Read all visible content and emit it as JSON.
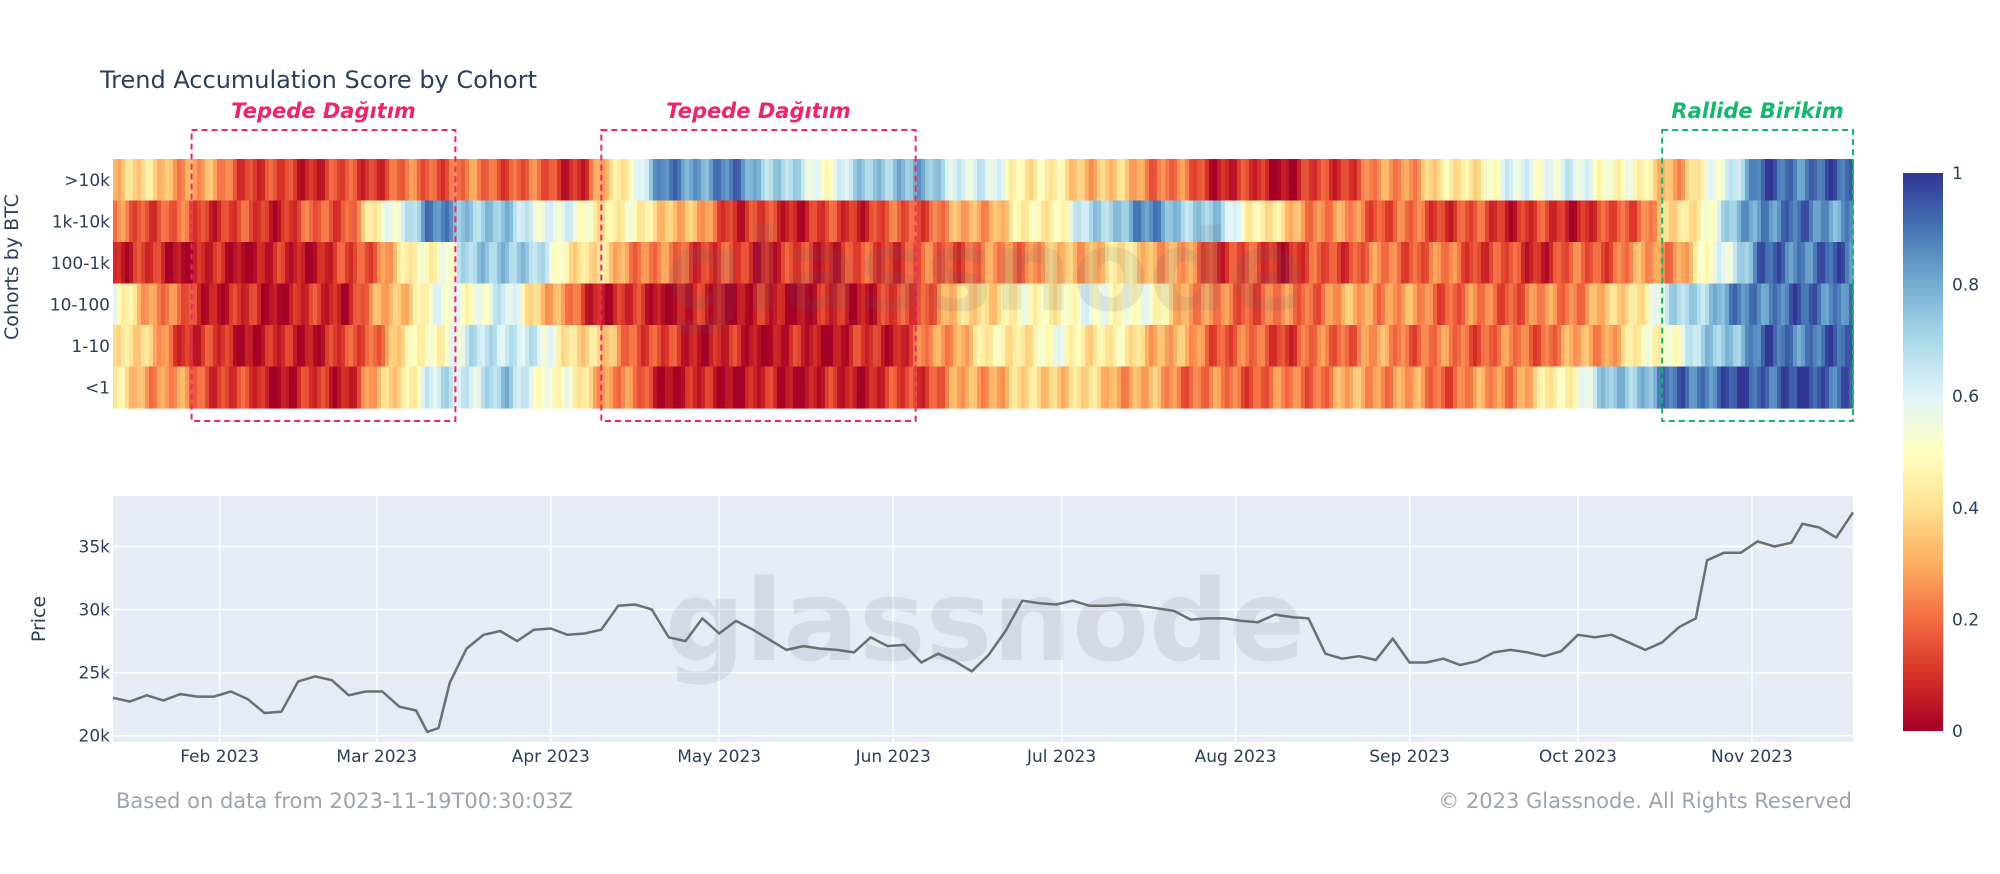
{
  "title": "Trend Accumulation Score by Cohort",
  "footer": {
    "left": "Based on data from 2023-11-19T00:30:03Z",
    "right": "© 2023 Glassnode. All Rights Reserved"
  },
  "watermark": "glassnode",
  "annotations": [
    {
      "label": "Tepede Dağıtım",
      "start": "2023-01-27",
      "end": "2023-03-15",
      "color": "#f0246b"
    },
    {
      "label": "Tepede Dağıtım",
      "start": "2023-04-10",
      "end": "2023-06-05",
      "color": "#f0246b"
    },
    {
      "label": "Rallide Birikim",
      "start": "2023-10-16",
      "end": "2023-11-19",
      "color": "#14b86a"
    }
  ],
  "chart_data": [
    {
      "type": "heatmap",
      "ylabel": "Cohorts by BTC",
      "y_categories": [
        ">10k",
        "1k-10k",
        "100-1k",
        "10-100",
        "1-10",
        "<1"
      ],
      "x_range": [
        "2023-01-13",
        "2023-11-19"
      ],
      "colorbar": {
        "min": 0,
        "max": 1,
        "ticks": [
          0,
          0.2,
          0.4,
          0.6,
          0.8,
          1
        ]
      },
      "series": [
        {
          "name": ">10k",
          "x": [
            "2023-01-13",
            "2023-01-27",
            "2023-02-10",
            "2023-02-24",
            "2023-03-10",
            "2023-03-24",
            "2023-04-07",
            "2023-04-21",
            "2023-05-05",
            "2023-05-19",
            "2023-06-02",
            "2023-06-16",
            "2023-06-30",
            "2023-07-14",
            "2023-07-28",
            "2023-08-11",
            "2023-08-25",
            "2023-09-08",
            "2023-09-22",
            "2023-10-06",
            "2023-10-20",
            "2023-11-03",
            "2023-11-17"
          ],
          "values": [
            0.4,
            0.3,
            0.1,
            0.12,
            0.2,
            0.2,
            0.1,
            0.85,
            0.85,
            0.55,
            0.8,
            0.6,
            0.4,
            0.3,
            0.1,
            0.05,
            0.2,
            0.4,
            0.6,
            0.55,
            0.3,
            0.92,
            0.9
          ]
        },
        {
          "name": "1k-10k",
          "x": [
            "2023-01-13",
            "2023-01-27",
            "2023-02-10",
            "2023-02-24",
            "2023-03-10",
            "2023-03-24",
            "2023-04-07",
            "2023-04-21",
            "2023-05-05",
            "2023-05-19",
            "2023-06-02",
            "2023-06-16",
            "2023-06-30",
            "2023-07-14",
            "2023-07-28",
            "2023-08-11",
            "2023-08-25",
            "2023-09-08",
            "2023-09-22",
            "2023-10-06",
            "2023-10-20",
            "2023-11-03",
            "2023-11-17"
          ],
          "values": [
            0.2,
            0.15,
            0.1,
            0.2,
            0.85,
            0.7,
            0.5,
            0.4,
            0.1,
            0.1,
            0.15,
            0.3,
            0.5,
            0.85,
            0.7,
            0.3,
            0.2,
            0.15,
            0.1,
            0.1,
            0.4,
            0.9,
            0.85
          ]
        },
        {
          "name": "100-1k",
          "x": [
            "2023-01-13",
            "2023-01-27",
            "2023-02-10",
            "2023-02-24",
            "2023-03-10",
            "2023-03-24",
            "2023-04-07",
            "2023-04-21",
            "2023-05-05",
            "2023-05-19",
            "2023-06-02",
            "2023-06-16",
            "2023-06-30",
            "2023-07-14",
            "2023-07-28",
            "2023-08-11",
            "2023-08-25",
            "2023-09-08",
            "2023-09-22",
            "2023-10-06",
            "2023-10-20",
            "2023-11-03",
            "2023-11-17"
          ],
          "values": [
            0.1,
            0.05,
            0.05,
            0.1,
            0.5,
            0.8,
            0.4,
            0.2,
            0.1,
            0.1,
            0.15,
            0.2,
            0.3,
            0.4,
            0.15,
            0.1,
            0.2,
            0.2,
            0.1,
            0.2,
            0.3,
            0.9,
            0.9
          ]
        },
        {
          "name": "10-100",
          "x": [
            "2023-01-13",
            "2023-01-27",
            "2023-02-10",
            "2023-02-24",
            "2023-03-10",
            "2023-03-24",
            "2023-04-07",
            "2023-04-21",
            "2023-05-05",
            "2023-05-19",
            "2023-06-02",
            "2023-06-16",
            "2023-06-30",
            "2023-07-14",
            "2023-07-28",
            "2023-08-11",
            "2023-08-25",
            "2023-09-08",
            "2023-09-22",
            "2023-10-06",
            "2023-10-20",
            "2023-11-03",
            "2023-11-17"
          ],
          "values": [
            0.5,
            0.1,
            0.05,
            0.1,
            0.5,
            0.6,
            0.1,
            0.05,
            0.05,
            0.05,
            0.1,
            0.4,
            0.5,
            0.55,
            0.2,
            0.2,
            0.3,
            0.2,
            0.2,
            0.3,
            0.7,
            0.9,
            0.9
          ]
        },
        {
          "name": "1-10",
          "x": [
            "2023-01-13",
            "2023-01-27",
            "2023-02-10",
            "2023-02-24",
            "2023-03-10",
            "2023-03-24",
            "2023-04-07",
            "2023-04-21",
            "2023-05-05",
            "2023-05-19",
            "2023-06-02",
            "2023-06-16",
            "2023-06-30",
            "2023-07-14",
            "2023-07-28",
            "2023-08-11",
            "2023-08-25",
            "2023-09-08",
            "2023-09-22",
            "2023-10-06",
            "2023-10-20",
            "2023-11-03",
            "2023-11-17"
          ],
          "values": [
            0.5,
            0.1,
            0.05,
            0.1,
            0.5,
            0.7,
            0.4,
            0.1,
            0.05,
            0.05,
            0.1,
            0.4,
            0.5,
            0.4,
            0.2,
            0.15,
            0.25,
            0.2,
            0.2,
            0.3,
            0.6,
            0.9,
            0.9
          ]
        },
        {
          "name": "<1",
          "x": [
            "2023-01-13",
            "2023-01-27",
            "2023-02-10",
            "2023-02-24",
            "2023-03-10",
            "2023-03-24",
            "2023-04-07",
            "2023-04-21",
            "2023-05-05",
            "2023-05-19",
            "2023-06-02",
            "2023-06-16",
            "2023-06-30",
            "2023-07-14",
            "2023-07-28",
            "2023-08-11",
            "2023-08-25",
            "2023-09-08",
            "2023-09-22",
            "2023-10-06",
            "2023-10-20",
            "2023-11-03",
            "2023-11-17"
          ],
          "values": [
            0.4,
            0.2,
            0.05,
            0.1,
            0.6,
            0.7,
            0.4,
            0.05,
            0.05,
            0.05,
            0.1,
            0.3,
            0.4,
            0.3,
            0.2,
            0.2,
            0.3,
            0.2,
            0.3,
            0.7,
            0.9,
            0.95,
            0.95
          ]
        }
      ]
    },
    {
      "type": "line",
      "ylabel": "Price",
      "x_range": [
        "2023-01-13",
        "2023-11-19"
      ],
      "ylim": [
        19500,
        39000
      ],
      "y_ticks": [
        20000,
        25000,
        30000,
        35000
      ],
      "y_tick_labels": [
        "20k",
        "25k",
        "30k",
        "35k"
      ],
      "x_ticks": [
        "2023-02-01",
        "2023-03-01",
        "2023-04-01",
        "2023-05-01",
        "2023-06-01",
        "2023-07-01",
        "2023-08-01",
        "2023-09-01",
        "2023-10-01",
        "2023-11-01"
      ],
      "x_tick_labels": [
        "Feb 2023",
        "Mar 2023",
        "Apr 2023",
        "May 2023",
        "Jun 2023",
        "Jul 2023",
        "Aug 2023",
        "Sep 2023",
        "Oct 2023",
        "Nov 2023"
      ],
      "grid": true,
      "series": [
        {
          "color": "#6e6e6e",
          "x": [
            "2023-01-13",
            "2023-01-16",
            "2023-01-19",
            "2023-01-22",
            "2023-01-25",
            "2023-01-28",
            "2023-01-31",
            "2023-02-03",
            "2023-02-06",
            "2023-02-09",
            "2023-02-12",
            "2023-02-15",
            "2023-02-18",
            "2023-02-21",
            "2023-02-24",
            "2023-02-27",
            "2023-03-02",
            "2023-03-05",
            "2023-03-08",
            "2023-03-10",
            "2023-03-12",
            "2023-03-14",
            "2023-03-17",
            "2023-03-20",
            "2023-03-23",
            "2023-03-26",
            "2023-03-29",
            "2023-04-01",
            "2023-04-04",
            "2023-04-07",
            "2023-04-10",
            "2023-04-13",
            "2023-04-16",
            "2023-04-19",
            "2023-04-22",
            "2023-04-25",
            "2023-04-28",
            "2023-05-01",
            "2023-05-04",
            "2023-05-07",
            "2023-05-10",
            "2023-05-13",
            "2023-05-16",
            "2023-05-19",
            "2023-05-22",
            "2023-05-25",
            "2023-05-28",
            "2023-05-31",
            "2023-06-03",
            "2023-06-06",
            "2023-06-09",
            "2023-06-12",
            "2023-06-15",
            "2023-06-18",
            "2023-06-21",
            "2023-06-24",
            "2023-06-27",
            "2023-06-30",
            "2023-07-03",
            "2023-07-06",
            "2023-07-09",
            "2023-07-12",
            "2023-07-15",
            "2023-07-18",
            "2023-07-21",
            "2023-07-24",
            "2023-07-27",
            "2023-07-30",
            "2023-08-02",
            "2023-08-05",
            "2023-08-08",
            "2023-08-11",
            "2023-08-14",
            "2023-08-17",
            "2023-08-20",
            "2023-08-23",
            "2023-08-26",
            "2023-08-29",
            "2023-09-01",
            "2023-09-04",
            "2023-09-07",
            "2023-09-10",
            "2023-09-13",
            "2023-09-16",
            "2023-09-19",
            "2023-09-22",
            "2023-09-25",
            "2023-09-28",
            "2023-10-01",
            "2023-10-04",
            "2023-10-07",
            "2023-10-10",
            "2023-10-13",
            "2023-10-16",
            "2023-10-19",
            "2023-10-22",
            "2023-10-24",
            "2023-10-27",
            "2023-10-30",
            "2023-11-02",
            "2023-11-05",
            "2023-11-08",
            "2023-11-10",
            "2023-11-13",
            "2023-11-16",
            "2023-11-19"
          ],
          "values": [
            23000,
            22700,
            23200,
            22800,
            23300,
            23100,
            23100,
            23500,
            22900,
            21800,
            21900,
            24300,
            24700,
            24400,
            23200,
            23500,
            23500,
            22300,
            22000,
            20300,
            20600,
            24200,
            26900,
            28000,
            28300,
            27500,
            28400,
            28500,
            28000,
            28100,
            28400,
            30300,
            30400,
            30000,
            27800,
            27500,
            29300,
            28100,
            29100,
            28400,
            27600,
            26800,
            27100,
            26900,
            26800,
            26600,
            27800,
            27100,
            27200,
            25800,
            26500,
            25900,
            25100,
            26400,
            28300,
            30700,
            30500,
            30400,
            30700,
            30300,
            30300,
            30400,
            30300,
            30100,
            29900,
            29200,
            29300,
            29300,
            29100,
            29000,
            29600,
            29400,
            29300,
            26500,
            26100,
            26300,
            26000,
            27700,
            25800,
            25800,
            26100,
            25600,
            25900,
            26600,
            26800,
            26600,
            26300,
            26700,
            28000,
            27800,
            28000,
            27400,
            26800,
            27400,
            28600,
            29300,
            33900,
            34500,
            34500,
            35400,
            35000,
            35300,
            36800,
            36500,
            35700,
            37700
          ]
        }
      ]
    }
  ]
}
